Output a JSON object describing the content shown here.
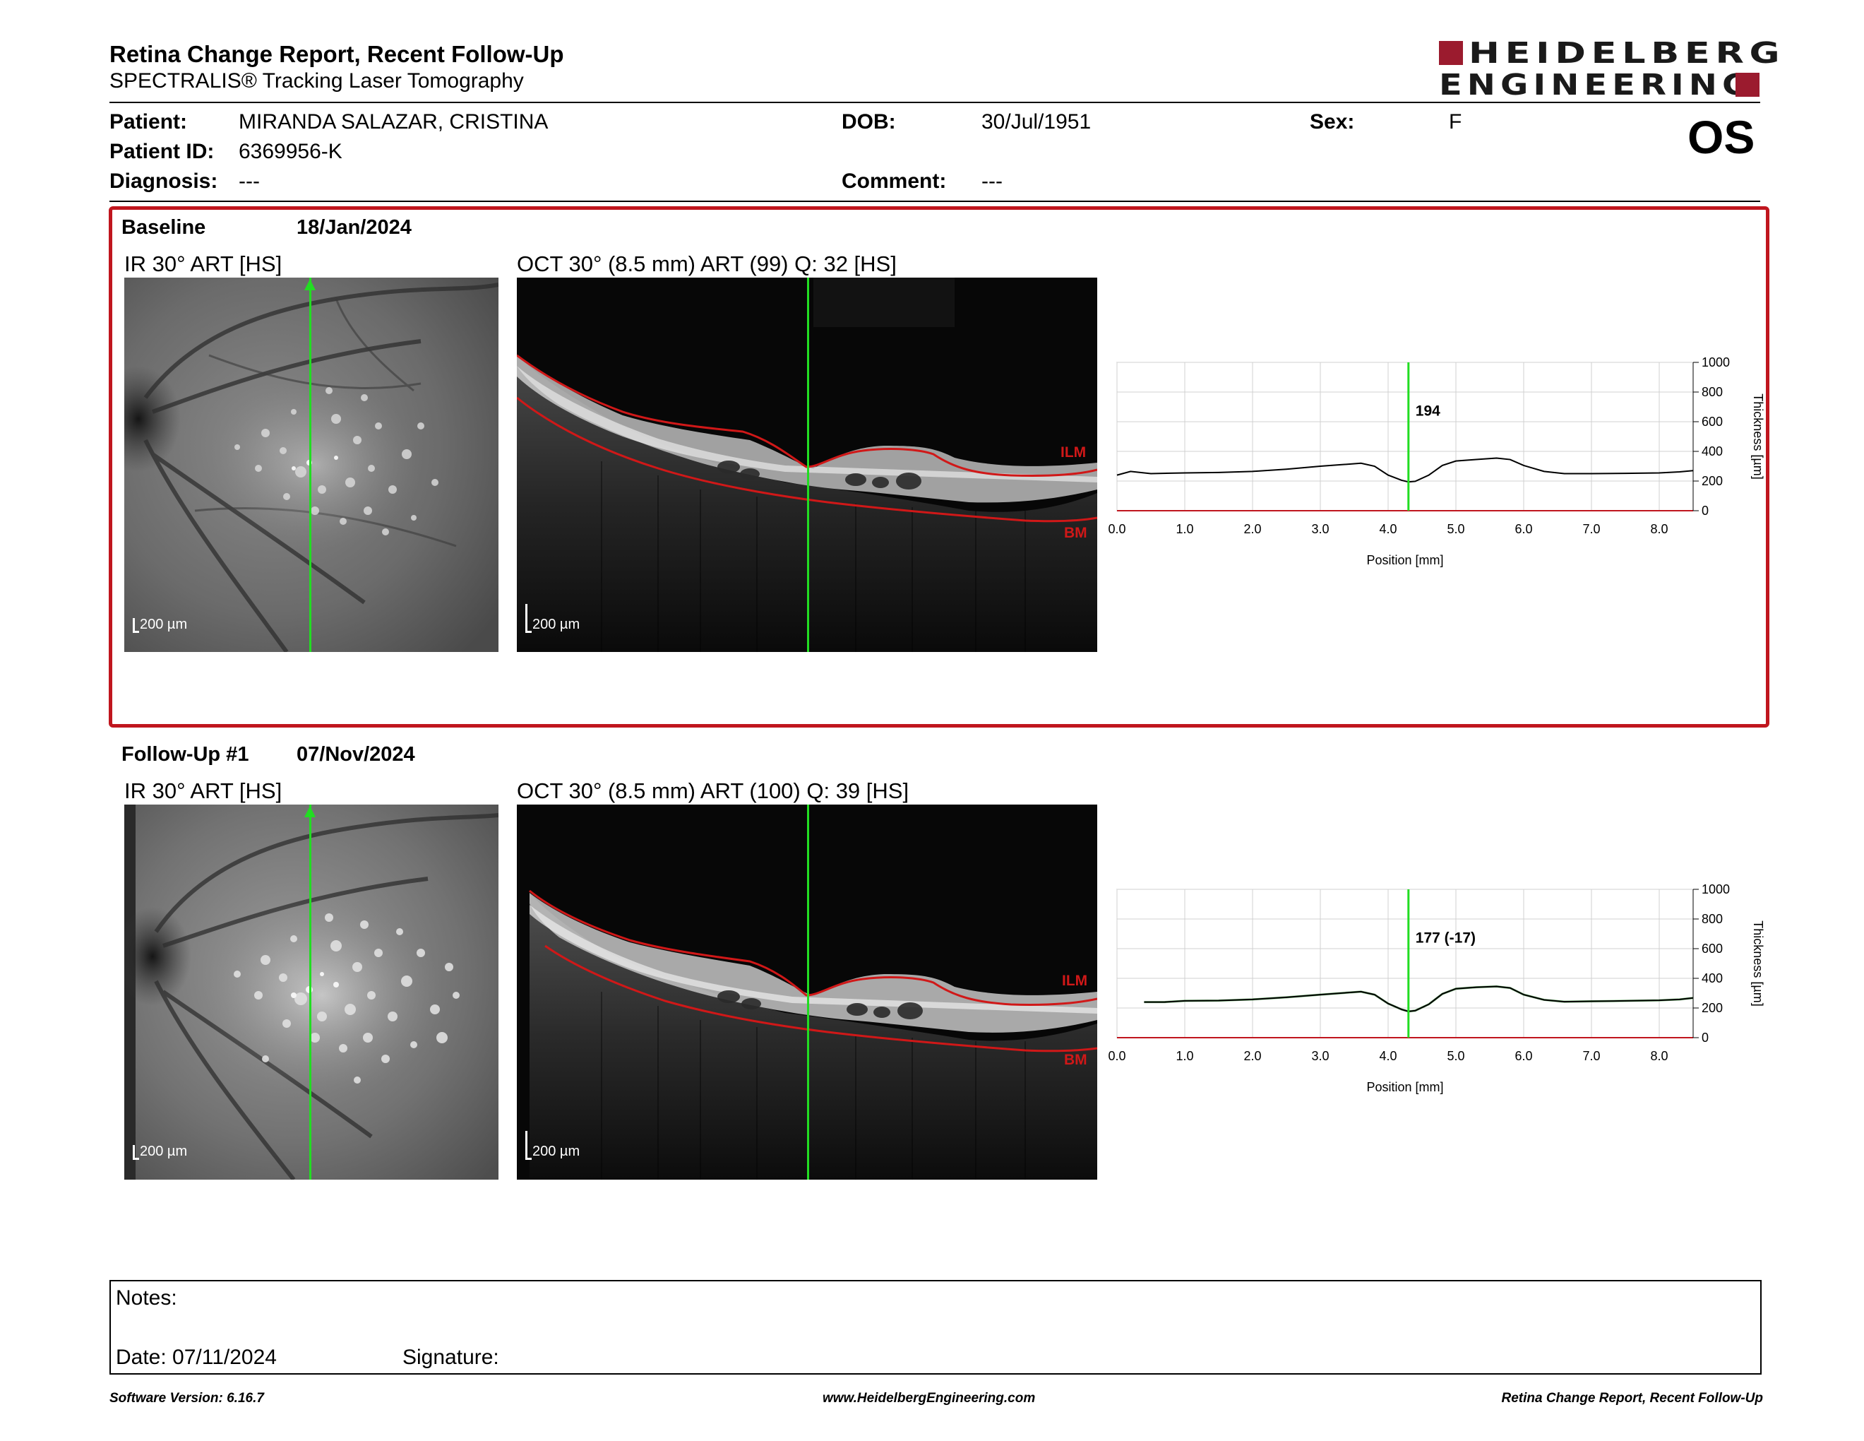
{
  "header": {
    "title": "Retina Change Report, Recent Follow-Up",
    "subtitle": "SPECTRALIS® Tracking Laser Tomography",
    "logo_line1": "HEIDELBERG",
    "logo_line2": "ENGINEERING",
    "eye": "OS"
  },
  "patient": {
    "patient_label": "Patient:",
    "patient_value": "MIRANDA SALAZAR, CRISTINA",
    "id_label": "Patient ID:",
    "id_value": "6369956-K",
    "diagnosis_label": "Diagnosis:",
    "diagnosis_value": "---",
    "dob_label": "DOB:",
    "dob_value": "30/Jul/1951",
    "comment_label": "Comment:",
    "comment_value": "---",
    "sex_label": "Sex:",
    "sex_value": "F"
  },
  "baseline": {
    "label": "Baseline",
    "date": "18/Jan/2024",
    "ir_label": "IR 30° ART [HS]",
    "oct_label": "OCT 30° (8.5 mm) ART (99) Q: 32 [HS]",
    "scale_bar": "200 µm",
    "ilm": "ILM",
    "bm": "BM"
  },
  "followup": {
    "label": "Follow-Up #1",
    "date": "07/Nov/2024",
    "ir_label": "IR 30° ART [HS]",
    "oct_label": "OCT 30° (8.5 mm) ART (100) Q: 39 [HS]",
    "scale_bar": "200 µm",
    "ilm": "ILM",
    "bm": "BM"
  },
  "notes": {
    "notes_label": "Notes:",
    "date_label": "Date: 07/11/2024",
    "signature_label": "Signature:"
  },
  "footer": {
    "left": "Software Version: 6.16.7",
    "center": "www.HeidelbergEngineering.com",
    "right": "Retina Change Report, Recent Follow-Up"
  },
  "colors": {
    "accent": "#c0161e",
    "logo": "#9b1b2e",
    "scan_line": "#22dd22",
    "ilm_bm": "#d01818"
  },
  "chart_data": [
    {
      "type": "line",
      "xlabel": "Position [mm]",
      "ylabel": "Thickness [µm]",
      "xlim": [
        0,
        8.5
      ],
      "ylim": [
        0,
        1000
      ],
      "xticks": [
        "0.0",
        "1.0",
        "2.0",
        "3.0",
        "4.0",
        "5.0",
        "6.0",
        "7.0",
        "8.0"
      ],
      "yticks": [
        "0",
        "200",
        "400",
        "600",
        "800",
        "1000"
      ],
      "cursor_x": 4.3,
      "cursor_label": "194",
      "series": [
        {
          "x": [
            0.0,
            0.2,
            0.5,
            1.0,
            1.5,
            2.0,
            2.5,
            3.0,
            3.3,
            3.6,
            3.8,
            4.0,
            4.2,
            4.3,
            4.4,
            4.6,
            4.8,
            5.0,
            5.3,
            5.6,
            5.8,
            6.0,
            6.3,
            6.6,
            7.0,
            7.5,
            8.0,
            8.3,
            8.5
          ],
          "values": [
            240,
            265,
            250,
            255,
            258,
            265,
            280,
            300,
            310,
            320,
            300,
            240,
            205,
            194,
            198,
            240,
            305,
            335,
            345,
            355,
            345,
            305,
            265,
            250,
            250,
            252,
            255,
            262,
            270
          ]
        }
      ],
      "grid": true
    },
    {
      "type": "line",
      "xlabel": "Position [mm]",
      "ylabel": "Thickness [µm]",
      "xlim": [
        0,
        8.5
      ],
      "ylim": [
        0,
        1000
      ],
      "xticks": [
        "0.0",
        "1.0",
        "2.0",
        "3.0",
        "4.0",
        "5.0",
        "6.0",
        "7.0",
        "8.0"
      ],
      "yticks": [
        "0",
        "200",
        "400",
        "600",
        "800",
        "1000"
      ],
      "cursor_x": 4.3,
      "cursor_label": "177 (-17)",
      "series": [
        {
          "x": [
            0.4,
            0.7,
            1.0,
            1.5,
            2.0,
            2.5,
            3.0,
            3.3,
            3.6,
            3.8,
            4.0,
            4.2,
            4.3,
            4.4,
            4.6,
            4.8,
            5.0,
            5.3,
            5.6,
            5.8,
            6.0,
            6.3,
            6.6,
            7.0,
            7.5,
            8.0,
            8.3,
            8.5
          ],
          "values": [
            240,
            240,
            248,
            250,
            258,
            272,
            290,
            300,
            310,
            290,
            230,
            190,
            177,
            182,
            225,
            295,
            330,
            340,
            345,
            335,
            290,
            255,
            242,
            245,
            248,
            252,
            258,
            268
          ]
        }
      ],
      "grid": true
    }
  ]
}
